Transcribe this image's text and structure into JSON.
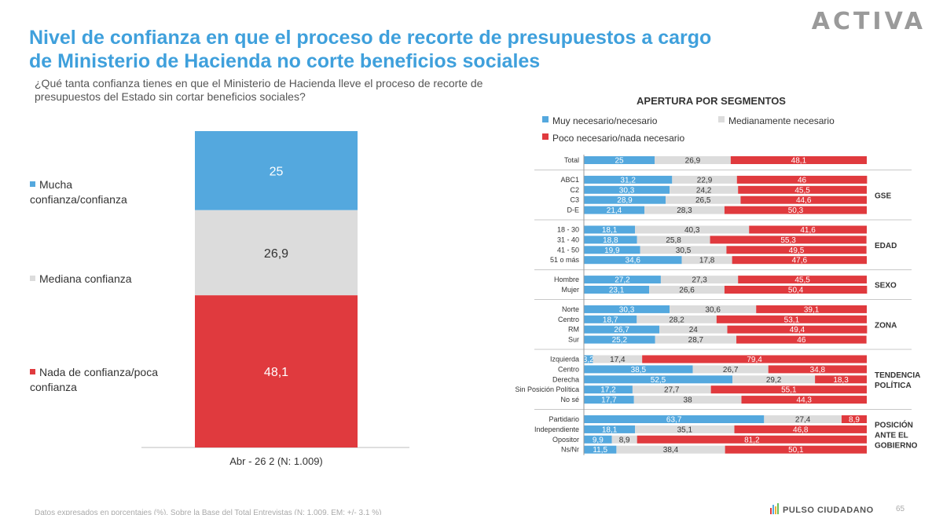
{
  "header": {
    "logo": "ACTIVA",
    "title_pre": "Nivel de ",
    "title_bold": "confianza en que el proceso de recorte de presupuestos a cargo de Ministerio de Hacienda no corte beneficios sociales",
    "question": "¿Qué tanta confianza tienes en que el Ministerio de Hacienda lleve el proceso de recorte de presupuestos del Estado sin cortar beneficios sociales?"
  },
  "colors": {
    "blue": "#54a8de",
    "gray": "#dcdcdc",
    "red": "#e03a3e"
  },
  "legend_main": [
    {
      "label": "Mucha confianza/confianza",
      "color": "#54a8de"
    },
    {
      "label": "Mediana confianza",
      "color": "#dcdcdc"
    },
    {
      "label": "Nada de confianza/poca confianza",
      "color": "#e03a3e"
    }
  ],
  "chart_data": [
    {
      "type": "bar",
      "stacked": true,
      "categories": [
        "Abr - 26 2 (N: 1.009)"
      ],
      "series": [
        {
          "name": "Mucha confianza/confianza",
          "values": [
            25
          ]
        },
        {
          "name": "Mediana confianza",
          "values": [
            26.9
          ]
        },
        {
          "name": "Nada de confianza/poca confianza",
          "values": [
            48.1
          ]
        }
      ]
    },
    {
      "type": "bar",
      "orientation": "horizontal",
      "stacked": true,
      "title": "APERTURA POR SEGMENTOS",
      "legend": [
        "Muy necesario/necesario",
        "Medianamente necesario",
        "Poco necesario/nada necesario"
      ],
      "groups": [
        {
          "name": "",
          "rows": [
            {
              "label": "Total",
              "values": [
                25,
                26.9,
                48.1
              ]
            }
          ]
        },
        {
          "name": "GSE",
          "rows": [
            {
              "label": "ABC1",
              "values": [
                31.2,
                22.9,
                46
              ]
            },
            {
              "label": "C2",
              "values": [
                30.3,
                24.2,
                45.5
              ]
            },
            {
              "label": "C3",
              "values": [
                28.9,
                26.5,
                44.6
              ]
            },
            {
              "label": "D-E",
              "values": [
                21.4,
                28.3,
                50.3
              ]
            }
          ]
        },
        {
          "name": "EDAD",
          "rows": [
            {
              "label": "18 - 30",
              "values": [
                18.1,
                40.3,
                41.6
              ]
            },
            {
              "label": "31 - 40",
              "values": [
                18.8,
                25.8,
                55.3
              ]
            },
            {
              "label": "41 - 50",
              "values": [
                19.9,
                30.5,
                49.5
              ]
            },
            {
              "label": "51 o más",
              "values": [
                34.6,
                17.8,
                47.6
              ]
            }
          ]
        },
        {
          "name": "SEXO",
          "rows": [
            {
              "label": "Hombre",
              "values": [
                27.2,
                27.3,
                45.5
              ]
            },
            {
              "label": "Mujer",
              "values": [
                23.1,
                26.6,
                50.4
              ]
            }
          ]
        },
        {
          "name": "ZONA",
          "rows": [
            {
              "label": "Norte",
              "values": [
                30.3,
                30.6,
                39.1
              ]
            },
            {
              "label": "Centro",
              "values": [
                18.7,
                28.2,
                53.1
              ]
            },
            {
              "label": "RM",
              "values": [
                26.7,
                24,
                49.4
              ]
            },
            {
              "label": "Sur",
              "values": [
                25.2,
                28.7,
                46
              ]
            }
          ]
        },
        {
          "name": "TENDENCIA POLÍTICA",
          "rows": [
            {
              "label": "Izquierda",
              "values": [
                3.2,
                17.4,
                79.4
              ]
            },
            {
              "label": "Centro",
              "values": [
                38.5,
                26.7,
                34.8
              ]
            },
            {
              "label": "Derecha",
              "values": [
                52.5,
                29.2,
                18.3
              ]
            },
            {
              "label": "Sin Posición Política",
              "values": [
                17.2,
                27.7,
                55.1
              ]
            },
            {
              "label": "No sé",
              "values": [
                17.7,
                38,
                44.3
              ]
            }
          ]
        },
        {
          "name": "POSICIÓN ANTE EL GOBIERNO",
          "rows": [
            {
              "label": "Partidario",
              "values": [
                63.7,
                27.4,
                8.9
              ]
            },
            {
              "label": "Independiente",
              "values": [
                18.1,
                35.1,
                46.8
              ]
            },
            {
              "label": "Opositor",
              "values": [
                9.9,
                8.9,
                81.2
              ]
            },
            {
              "label": "Ns/Nr",
              "values": [
                11.5,
                38.4,
                50.1
              ]
            }
          ]
        }
      ]
    }
  ],
  "footer": {
    "brand": "PULSO CIUDADANO",
    "page": "65",
    "note": "Datos expresados en porcentajes (%). Sobre la Base del Total Entrevistas (N: 1.009. EM: +/- 3.1 %)"
  }
}
